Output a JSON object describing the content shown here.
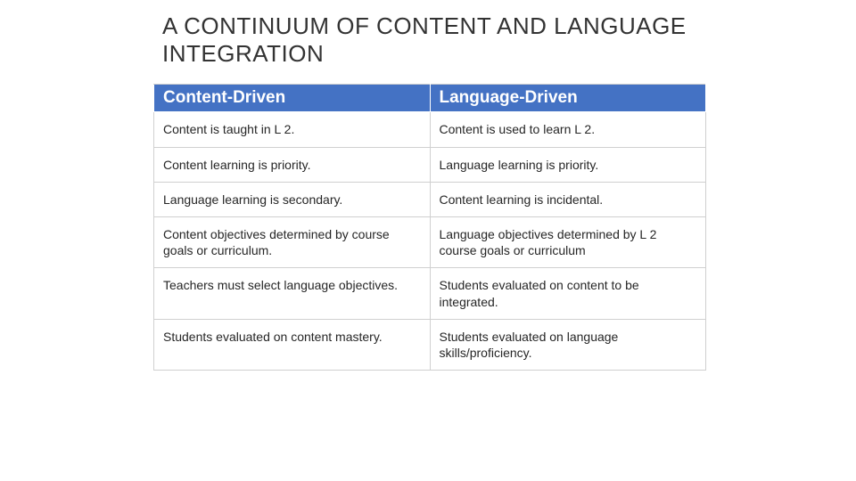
{
  "title": "A CONTINUUM OF CONTENT AND LANGUAGE INTEGRATION",
  "table": {
    "type": "table",
    "header_bg": "#4472c4",
    "header_fg": "#ffffff",
    "cell_bg": "#ffffff",
    "cell_fg": "#262626",
    "border_color": "#d0d0d0",
    "header_fontsize": 19,
    "cell_fontsize": 14,
    "columns": [
      {
        "label": "Content-Driven",
        "width_pct": 50
      },
      {
        "label": "Language-Driven",
        "width_pct": 50
      }
    ],
    "rows": [
      [
        " Content is taught in L 2.",
        " Content is used to learn L 2."
      ],
      [
        "Content learning is priority.",
        "Language learning is  priority."
      ],
      [
        "Language learning is secondary.",
        "Content learning is incidental."
      ],
      [
        "Content objectives determined by course goals or curriculum.",
        "Language objectives determined by L 2 course goals or curriculum"
      ],
      [
        "Teachers must select language objectives.",
        "Students evaluated on content to be integrated."
      ],
      [
        "Students evaluated on content mastery.",
        "Students evaluated on language skills/proficiency."
      ]
    ]
  }
}
